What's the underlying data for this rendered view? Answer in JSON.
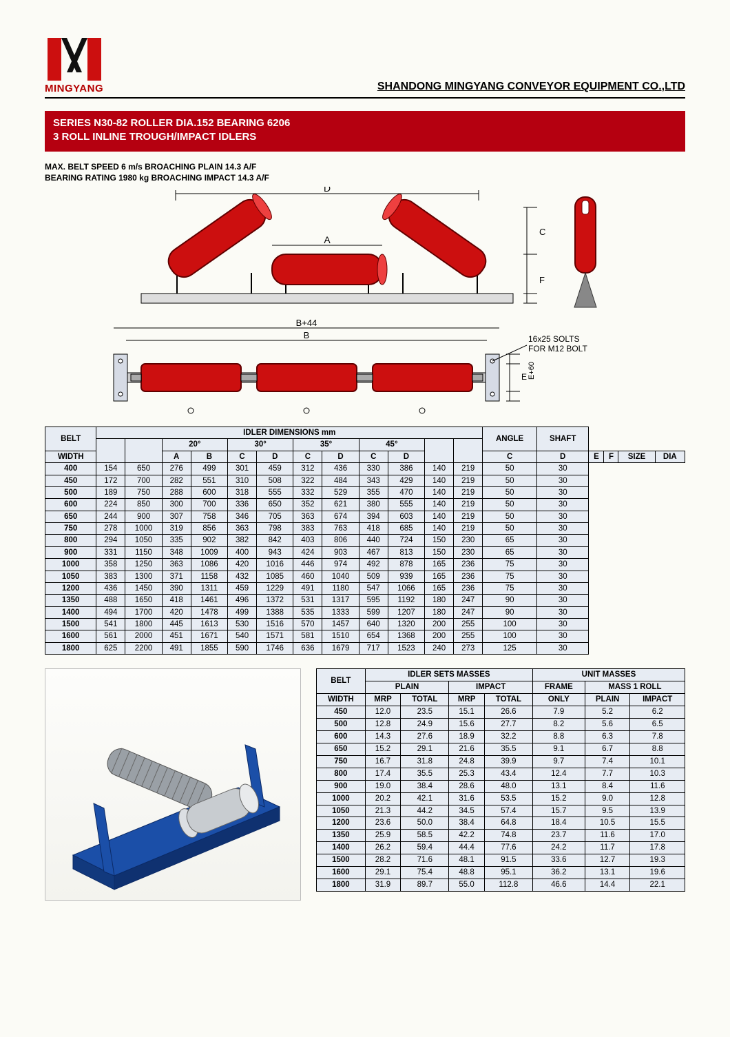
{
  "header": {
    "logo_name": "MINGYANG",
    "company": "SHANDONG MINGYANG CONVEYOR EQUIPMENT CO.,LTD"
  },
  "title": {
    "line1": "SERIES N30-82 ROLLER DIA.152 BEARING 6206",
    "line2": "3 ROLL INLINE TROUGH/IMPACT IDLERS"
  },
  "specs": {
    "line1": "MAX. BELT SPEED 6 m/s BROACHING PLAIN 14.3 A/F",
    "line2": "BEARING RATING 1980 kg BROACHING IMPACT 14.3 A/F"
  },
  "diagram_labels": {
    "D": "D",
    "A": "A",
    "C": "C",
    "F": "F",
    "B44": "B+44",
    "B": "B",
    "E": "E",
    "E60": "E+60",
    "slots": "16x25 SOLTS\nFOR M12 BOLT"
  },
  "colors": {
    "title_bg": "#b50010",
    "title_fg": "#ffffff",
    "table_bg": "#e7ecf3",
    "roller_fill": "#cc0f0f",
    "roller_stroke": "#600000",
    "frame_color": "#1b4fa8",
    "logo_red": "#cc0f0f",
    "logo_black": "#111111"
  },
  "dim_table": {
    "header_main": "IDLER DIMENSIONS mm",
    "belt_label": "BELT",
    "width_label": "WIDTH",
    "angle_label": "ANGLE",
    "size_label": "SIZE",
    "shaft_label": "SHAFT",
    "dia_label": "DIA",
    "col_A": "A",
    "col_B": "B",
    "col_C": "C",
    "col_D": "D",
    "col_E": "E",
    "col_F": "F",
    "group_20": "20°",
    "group_30": "30°",
    "group_35": "35°",
    "group_45": "45°",
    "rows": [
      [
        "400",
        "154",
        "650",
        "276",
        "499",
        "301",
        "459",
        "312",
        "436",
        "330",
        "386",
        "140",
        "219",
        "50",
        "30"
      ],
      [
        "450",
        "172",
        "700",
        "282",
        "551",
        "310",
        "508",
        "322",
        "484",
        "343",
        "429",
        "140",
        "219",
        "50",
        "30"
      ],
      [
        "500",
        "189",
        "750",
        "288",
        "600",
        "318",
        "555",
        "332",
        "529",
        "355",
        "470",
        "140",
        "219",
        "50",
        "30"
      ],
      [
        "600",
        "224",
        "850",
        "300",
        "700",
        "336",
        "650",
        "352",
        "621",
        "380",
        "555",
        "140",
        "219",
        "50",
        "30"
      ],
      [
        "650",
        "244",
        "900",
        "307",
        "758",
        "346",
        "705",
        "363",
        "674",
        "394",
        "603",
        "140",
        "219",
        "50",
        "30"
      ],
      [
        "750",
        "278",
        "1000",
        "319",
        "856",
        "363",
        "798",
        "383",
        "763",
        "418",
        "685",
        "140",
        "219",
        "50",
        "30"
      ],
      [
        "800",
        "294",
        "1050",
        "335",
        "902",
        "382",
        "842",
        "403",
        "806",
        "440",
        "724",
        "150",
        "230",
        "65",
        "30"
      ],
      [
        "900",
        "331",
        "1150",
        "348",
        "1009",
        "400",
        "943",
        "424",
        "903",
        "467",
        "813",
        "150",
        "230",
        "65",
        "30"
      ],
      [
        "1000",
        "358",
        "1250",
        "363",
        "1086",
        "420",
        "1016",
        "446",
        "974",
        "492",
        "878",
        "165",
        "236",
        "75",
        "30"
      ],
      [
        "1050",
        "383",
        "1300",
        "371",
        "1158",
        "432",
        "1085",
        "460",
        "1040",
        "509",
        "939",
        "165",
        "236",
        "75",
        "30"
      ],
      [
        "1200",
        "436",
        "1450",
        "390",
        "1311",
        "459",
        "1229",
        "491",
        "1180",
        "547",
        "1066",
        "165",
        "236",
        "75",
        "30"
      ],
      [
        "1350",
        "488",
        "1650",
        "418",
        "1461",
        "496",
        "1372",
        "531",
        "1317",
        "595",
        "1192",
        "180",
        "247",
        "90",
        "30"
      ],
      [
        "1400",
        "494",
        "1700",
        "420",
        "1478",
        "499",
        "1388",
        "535",
        "1333",
        "599",
        "1207",
        "180",
        "247",
        "90",
        "30"
      ],
      [
        "1500",
        "541",
        "1800",
        "445",
        "1613",
        "530",
        "1516",
        "570",
        "1457",
        "640",
        "1320",
        "200",
        "255",
        "100",
        "30"
      ],
      [
        "1600",
        "561",
        "2000",
        "451",
        "1671",
        "540",
        "1571",
        "581",
        "1510",
        "654",
        "1368",
        "200",
        "255",
        "100",
        "30"
      ],
      [
        "1800",
        "625",
        "2200",
        "491",
        "1855",
        "590",
        "1746",
        "636",
        "1679",
        "717",
        "1523",
        "240",
        "273",
        "125",
        "30"
      ]
    ]
  },
  "mass_table": {
    "belt_label": "BELT",
    "width_label": "WIDTH",
    "sets_label": "IDLER SETS MASSES",
    "unit_label": "UNIT MASSES",
    "plain_label": "PLAIN",
    "impact_label": "IMPACT",
    "frame_label": "FRAME",
    "mass1_label": "MASS 1 ROLL",
    "mrp_label": "MRP",
    "total_label": "TOTAL",
    "only_label": "ONLY",
    "rows": [
      [
        "450",
        "12.0",
        "23.5",
        "15.1",
        "26.6",
        "7.9",
        "5.2",
        "6.2"
      ],
      [
        "500",
        "12.8",
        "24.9",
        "15.6",
        "27.7",
        "8.2",
        "5.6",
        "6.5"
      ],
      [
        "600",
        "14.3",
        "27.6",
        "18.9",
        "32.2",
        "8.8",
        "6.3",
        "7.8"
      ],
      [
        "650",
        "15.2",
        "29.1",
        "21.6",
        "35.5",
        "9.1",
        "6.7",
        "8.8"
      ],
      [
        "750",
        "16.7",
        "31.8",
        "24.8",
        "39.9",
        "9.7",
        "7.4",
        "10.1"
      ],
      [
        "800",
        "17.4",
        "35.5",
        "25.3",
        "43.4",
        "12.4",
        "7.7",
        "10.3"
      ],
      [
        "900",
        "19.0",
        "38.4",
        "28.6",
        "48.0",
        "13.1",
        "8.4",
        "11.6"
      ],
      [
        "1000",
        "20.2",
        "42.1",
        "31.6",
        "53.5",
        "15.2",
        "9.0",
        "12.8"
      ],
      [
        "1050",
        "21.3",
        "44.2",
        "34.5",
        "57.4",
        "15.7",
        "9.5",
        "13.9"
      ],
      [
        "1200",
        "23.6",
        "50.0",
        "38.4",
        "64.8",
        "18.4",
        "10.5",
        "15.5"
      ],
      [
        "1350",
        "25.9",
        "58.5",
        "42.2",
        "74.8",
        "23.7",
        "11.6",
        "17.0"
      ],
      [
        "1400",
        "26.2",
        "59.4",
        "44.4",
        "77.6",
        "24.2",
        "11.7",
        "17.8"
      ],
      [
        "1500",
        "28.2",
        "71.6",
        "48.1",
        "91.5",
        "33.6",
        "12.7",
        "19.3"
      ],
      [
        "1600",
        "29.1",
        "75.4",
        "48.8",
        "95.1",
        "36.2",
        "13.1",
        "19.6"
      ],
      [
        "1800",
        "31.9",
        "89.7",
        "55.0",
        "112.8",
        "46.6",
        "14.4",
        "22.1"
      ]
    ]
  }
}
